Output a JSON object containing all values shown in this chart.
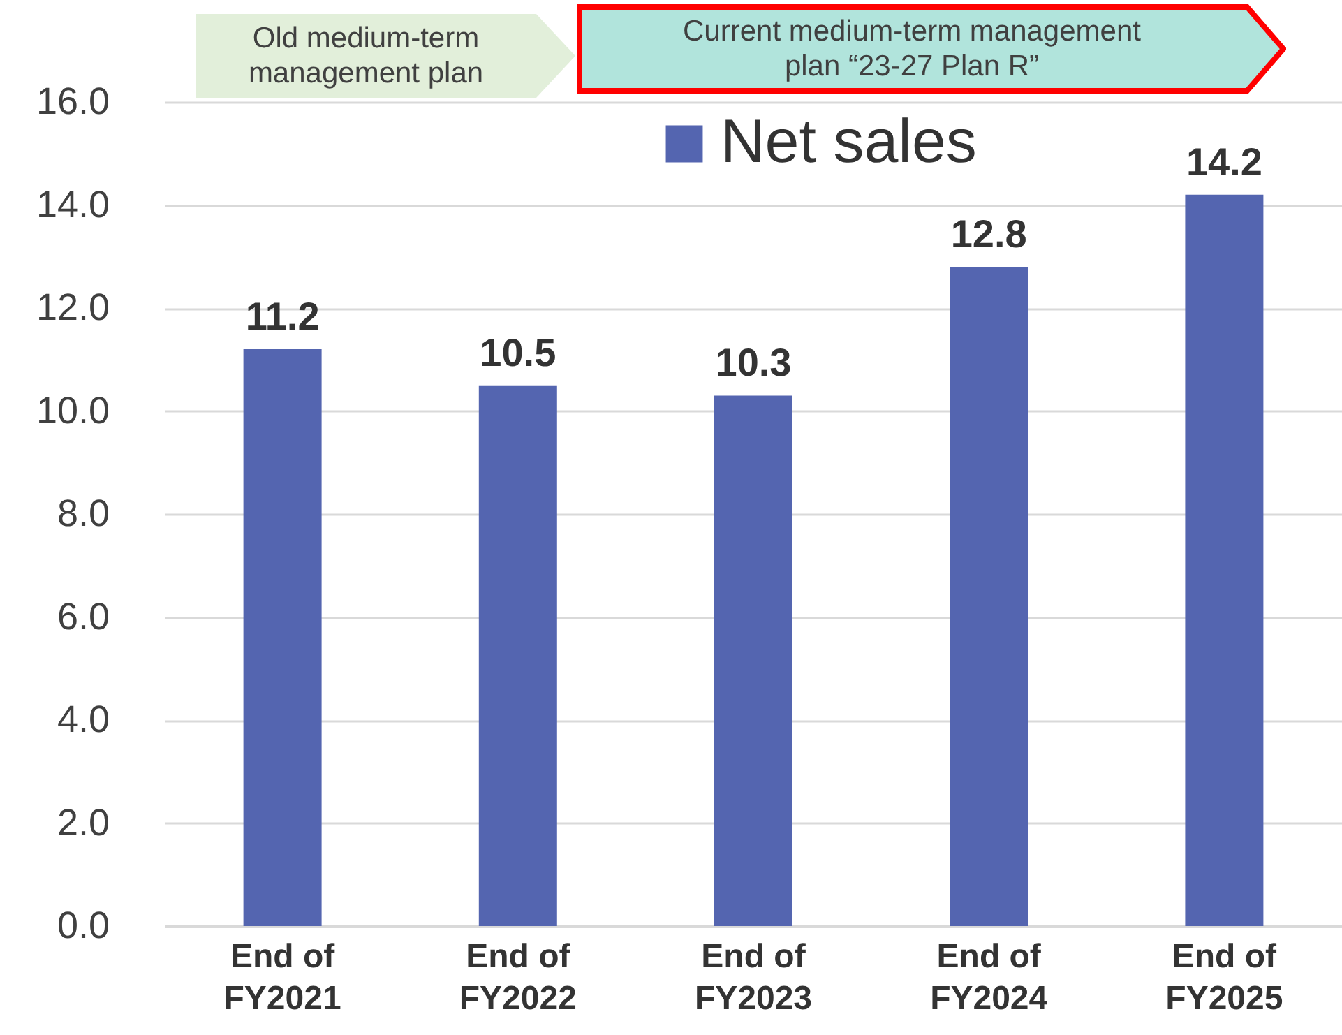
{
  "chart_data": {
    "type": "bar",
    "categories": [
      "End of FY2021",
      "End of FY2022",
      "End of FY2023",
      "End of FY2024",
      "End of FY2025"
    ],
    "series": [
      {
        "name": "Net sales",
        "color": "#5465b0",
        "values": [
          11.2,
          10.5,
          10.3,
          12.8,
          14.2
        ]
      }
    ],
    "ylim": [
      0,
      16
    ],
    "yticks": [
      {
        "value": 0,
        "label": "0.0"
      },
      {
        "value": 2,
        "label": "2.0"
      },
      {
        "value": 4,
        "label": "4.0"
      },
      {
        "value": 6,
        "label": "6.0"
      },
      {
        "value": 8,
        "label": "8.0"
      },
      {
        "value": 10,
        "label": "10.0"
      },
      {
        "value": 12,
        "label": "12.0"
      },
      {
        "value": 14,
        "label": "14.0"
      },
      {
        "value": 16,
        "label": "16.0"
      }
    ],
    "grid": "y",
    "legend": "top right",
    "data_labels": true,
    "annotations": [
      "Old medium-term management plan",
      "Current medium-term management plan “23-27 Plan R”"
    ]
  }
}
